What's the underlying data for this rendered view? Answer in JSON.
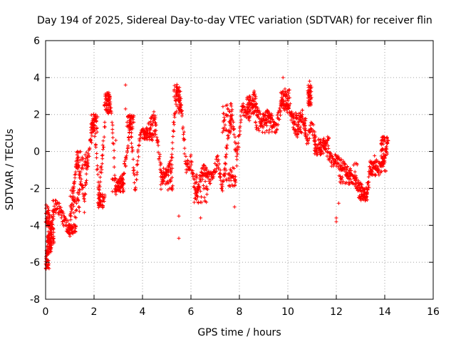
{
  "chart_data": {
    "type": "scatter",
    "title": "Day 194 of 2025, Sidereal Day-to-day VTEC variation (SDTVAR) for receiver flin",
    "xlabel": "GPS time / hours",
    "ylabel": "SDTVAR / TECUs",
    "xlim": [
      0,
      16
    ],
    "ylim": [
      -8,
      6
    ],
    "xticks": [
      0,
      2,
      4,
      6,
      8,
      10,
      12,
      14,
      16
    ],
    "yticks": [
      -8,
      -6,
      -4,
      -2,
      0,
      2,
      4,
      6
    ],
    "xtick_labels": [
      "0",
      "2",
      "4",
      "6",
      "8",
      "10",
      "12",
      "14",
      "16"
    ],
    "ytick_labels": [
      "-8",
      "-6",
      "-4",
      "-2",
      "0",
      "2",
      "4",
      "6"
    ],
    "grid": true,
    "marker": "plus",
    "series": [
      {
        "name": "SDTVAR",
        "color": "#ff0000",
        "trend": [
          [
            0.0,
            -6.2
          ],
          [
            0.1,
            -4.5
          ],
          [
            0.2,
            -5.3
          ],
          [
            0.3,
            -3.0
          ],
          [
            0.5,
            -3.0
          ],
          [
            1.0,
            -4.3
          ],
          [
            1.1,
            -2.5
          ],
          [
            1.3,
            -0.5
          ],
          [
            1.6,
            -2.5
          ],
          [
            1.8,
            0.0
          ],
          [
            2.0,
            1.8
          ],
          [
            2.2,
            -2.2
          ],
          [
            2.4,
            0.5
          ],
          [
            2.5,
            3.0
          ],
          [
            2.7,
            2.5
          ],
          [
            2.9,
            -2.0
          ],
          [
            3.2,
            -1.5
          ],
          [
            3.5,
            1.5
          ],
          [
            3.7,
            -2.0
          ],
          [
            3.9,
            1.0
          ],
          [
            4.2,
            1.0
          ],
          [
            4.5,
            2.0
          ],
          [
            4.8,
            -1.5
          ],
          [
            5.2,
            -0.5
          ],
          [
            5.4,
            3.5
          ],
          [
            5.6,
            2.5
          ],
          [
            5.8,
            -1.0
          ],
          [
            6.0,
            -0.5
          ],
          [
            6.2,
            -2.5
          ],
          [
            6.5,
            -1.0
          ],
          [
            6.8,
            -1.5
          ],
          [
            7.1,
            -0.5
          ],
          [
            7.3,
            -2.0
          ],
          [
            7.5,
            0.5
          ],
          [
            7.7,
            2.0
          ],
          [
            7.9,
            -0.5
          ],
          [
            8.1,
            2.4
          ],
          [
            8.4,
            2.0
          ],
          [
            8.6,
            3.0
          ],
          [
            8.9,
            1.5
          ],
          [
            9.2,
            2.0
          ],
          [
            9.5,
            1.2
          ],
          [
            9.8,
            3.0
          ],
          [
            10.1,
            2.0
          ],
          [
            10.4,
            1.0
          ],
          [
            10.6,
            2.0
          ],
          [
            10.8,
            0.5
          ],
          [
            11.0,
            1.5
          ],
          [
            11.2,
            0.0
          ],
          [
            11.5,
            0.5
          ],
          [
            11.8,
            -0.5
          ],
          [
            12.0,
            -0.5
          ],
          [
            12.3,
            -0.8
          ],
          [
            12.7,
            -1.5
          ],
          [
            13.0,
            -2.0
          ],
          [
            13.2,
            -2.5
          ],
          [
            13.4,
            -1.0
          ],
          [
            13.6,
            -0.5
          ],
          [
            13.8,
            -1.0
          ],
          [
            14.0,
            -0.2
          ],
          [
            14.1,
            0.6
          ]
        ],
        "clusters": [
          [
            0.05,
            -5.9,
            0.12,
            0.5
          ],
          [
            0.08,
            -3.5,
            0.1,
            0.6
          ],
          [
            0.15,
            -5.0,
            0.1,
            0.6
          ],
          [
            0.25,
            -4.2,
            0.1,
            0.8
          ],
          [
            1.1,
            -4.2,
            0.15,
            0.25
          ],
          [
            1.2,
            -2.8,
            0.2,
            0.8
          ],
          [
            1.5,
            -0.5,
            0.25,
            0.5
          ],
          [
            2.0,
            1.5,
            0.15,
            0.5
          ],
          [
            2.3,
            -2.7,
            0.15,
            0.4
          ],
          [
            2.55,
            2.6,
            0.12,
            0.6
          ],
          [
            3.0,
            -1.8,
            0.25,
            0.4
          ],
          [
            3.5,
            1.6,
            0.15,
            0.4
          ],
          [
            4.3,
            0.9,
            0.25,
            0.3
          ],
          [
            5.45,
            2.8,
            0.15,
            0.8
          ],
          [
            5.0,
            -1.5,
            0.25,
            0.6
          ],
          [
            6.4,
            -2.0,
            0.3,
            0.8
          ],
          [
            7.5,
            1.8,
            0.2,
            0.8
          ],
          [
            7.6,
            -1.3,
            0.25,
            0.6
          ],
          [
            8.5,
            2.5,
            0.2,
            0.5
          ],
          [
            9.0,
            1.6,
            0.35,
            0.6
          ],
          [
            9.9,
            2.8,
            0.2,
            0.6
          ],
          [
            10.5,
            1.5,
            0.25,
            0.6
          ],
          [
            10.9,
            3.0,
            0.08,
            0.6
          ],
          [
            11.4,
            0.3,
            0.3,
            0.5
          ],
          [
            12.5,
            -1.2,
            0.4,
            0.6
          ],
          [
            13.1,
            -2.3,
            0.25,
            0.4
          ],
          [
            13.7,
            -0.9,
            0.35,
            0.4
          ],
          [
            14.0,
            0.2,
            0.15,
            0.6
          ]
        ],
        "outliers": [
          [
            3.3,
            3.6
          ],
          [
            9.8,
            4.0
          ],
          [
            10.9,
            3.8
          ],
          [
            5.5,
            -4.7
          ],
          [
            12.0,
            -3.6
          ],
          [
            12.1,
            -2.8
          ],
          [
            7.8,
            -3.0
          ],
          [
            5.5,
            -3.5
          ],
          [
            6.4,
            -3.6
          ],
          [
            1.6,
            -3.3
          ],
          [
            2.9,
            0.6
          ],
          [
            10.9,
            3.5
          ],
          [
            3.3,
            2.3
          ],
          [
            8.6,
            3.2
          ],
          [
            12.0,
            -3.8
          ]
        ]
      }
    ]
  }
}
